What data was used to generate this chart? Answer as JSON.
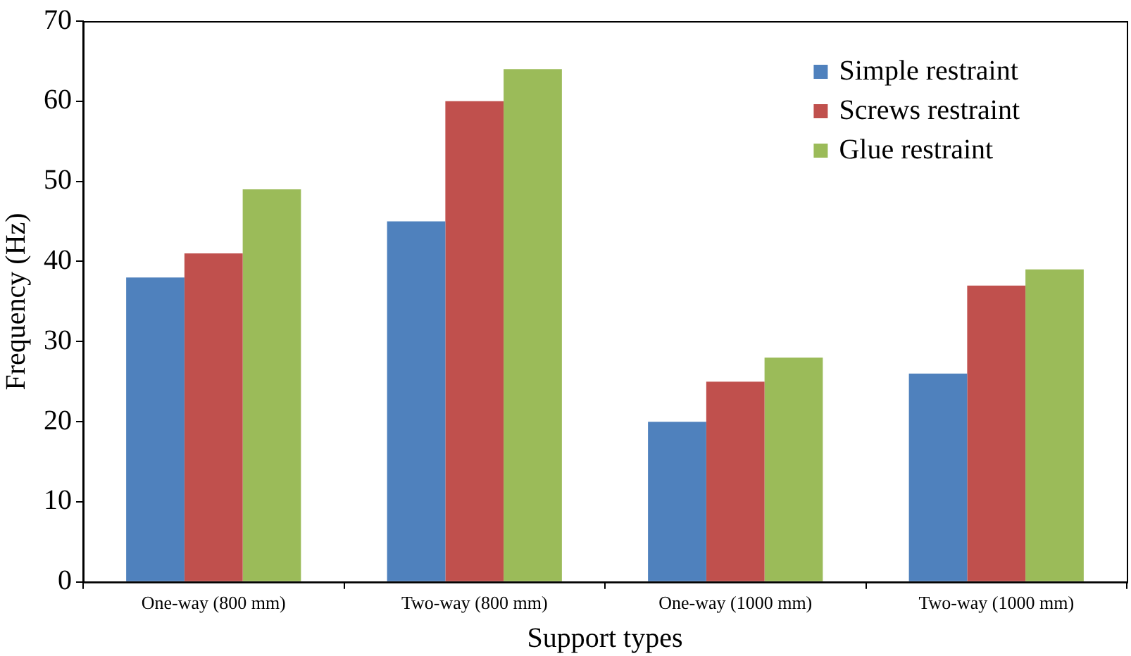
{
  "chart_data": {
    "type": "bar",
    "xlabel": "Support types",
    "ylabel": "Frequency (Hz)",
    "categories": [
      "One-way (800 mm)",
      "Two-way (800 mm)",
      "One-way (1000 mm)",
      "Two-way (1000 mm)"
    ],
    "series": [
      {
        "name": "Simple restraint",
        "color": "#4f81bd",
        "values": [
          38,
          45,
          20,
          26
        ]
      },
      {
        "name": "Screws restraint",
        "color": "#c0504d",
        "values": [
          41,
          60,
          25,
          37
        ]
      },
      {
        "name": "Glue restraint",
        "color": "#9bbb59",
        "values": [
          49,
          64,
          28,
          39
        ]
      }
    ],
    "ylim": [
      0,
      70
    ],
    "yticks": [
      0,
      10,
      20,
      30,
      40,
      50,
      60,
      70
    ],
    "grid": false,
    "legend": "top right"
  }
}
